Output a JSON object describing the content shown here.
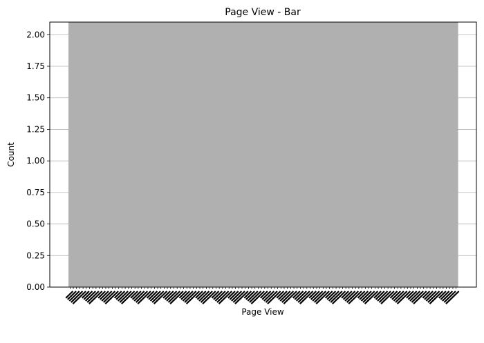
{
  "chart_data": {
    "type": "bar",
    "title": "Page View - Bar",
    "xlabel": "Page View",
    "ylabel": "Count",
    "ylim": [
      0,
      2.1
    ],
    "yticks": [
      "0.00",
      "0.25",
      "0.50",
      "0.75",
      "1.00",
      "1.25",
      "1.50",
      "1.75",
      "2.00"
    ],
    "grid": true,
    "bar_color": "#b0b0b0",
    "x_tick_label_rotation": 45,
    "x_tick_labels_legible": false,
    "n_categories_approx": 120,
    "values_note": "all bars reach the top of the plot (at least 2.1)",
    "categories": [],
    "values": []
  }
}
